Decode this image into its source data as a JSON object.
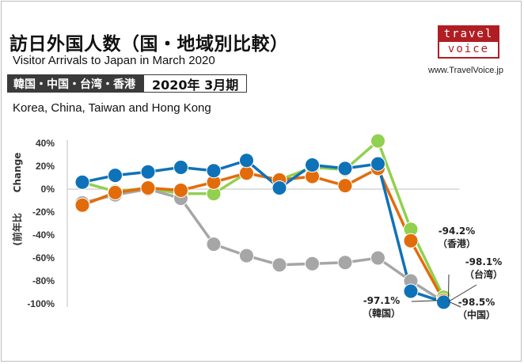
{
  "title_ja": "訪日外国人数（国・地域別比較）",
  "title_en": "Visitor Arrivals to Japan in March 2020",
  "tag_regions": "韓国・中国・台湾・香港",
  "tag_period": "2020年 3月期",
  "subtitle_en": "Korea, China, Taiwan and Hong Kong",
  "logo": {
    "top": "travel",
    "bottom": "voice",
    "url": "www.TravelVoice.jp",
    "color": "#b01e23"
  },
  "chart_data": {
    "type": "line",
    "ylabel_en": "Change",
    "ylabel_ja": "(前年比",
    "ylim": [
      -100,
      40
    ],
    "yticks": [
      "40%",
      "20%",
      "0%",
      "-20%",
      "-40%",
      "-60%",
      "-80%",
      "-100%"
    ],
    "n_points": 12,
    "grid": false,
    "series": [
      {
        "color": "#92d050",
        "values": [
          6,
          -2,
          1,
          -4,
          -4,
          14,
          8,
          19,
          17,
          42,
          -35,
          -94.2
        ]
      },
      {
        "color": "#a6a6a6",
        "values": [
          -12,
          -5,
          0,
          -8,
          -48,
          -58,
          -66,
          -65,
          -64,
          -60,
          -80,
          -98.1
        ]
      },
      {
        "color": "#e36c0a",
        "values": [
          -14,
          -3,
          1,
          -1,
          6,
          14,
          8,
          11,
          3,
          18,
          -45,
          -97.1
        ]
      },
      {
        "color": "#0e72b8",
        "values": [
          6,
          12,
          15,
          19,
          16,
          25,
          1,
          21,
          18,
          22,
          -89,
          -98.5
        ]
      }
    ],
    "annotations": [
      {
        "value": "-94.2%",
        "label": "（香港）"
      },
      {
        "value": "-98.1%",
        "label": "（台湾）"
      },
      {
        "value": "-97.1%",
        "label": "（韓国）"
      },
      {
        "value": "-98.5%",
        "label": "（中国）"
      }
    ]
  }
}
